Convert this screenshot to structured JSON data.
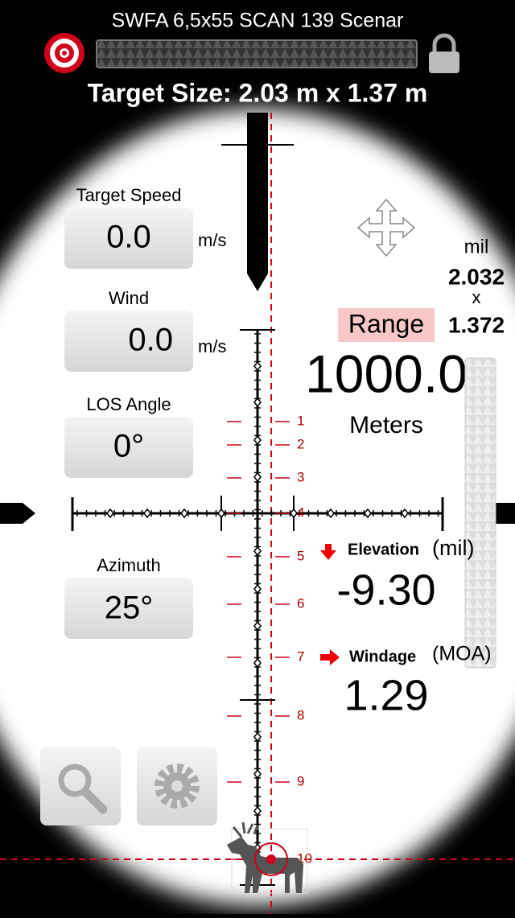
{
  "header": {
    "title": "SWFA 6,5x55 SCAN 139 Scenar",
    "target_size": "Target Size: 2.03 m x 1.37 m"
  },
  "inputs": [
    {
      "label": "Target Speed",
      "value": "0.0",
      "unit": "m/s"
    },
    {
      "label": "Wind",
      "value": "0.0",
      "unit": "m/s"
    },
    {
      "label": "LOS Angle",
      "value": "0°"
    },
    {
      "label": "Azimuth",
      "value": "25°"
    }
  ],
  "mil_size": {
    "unit": "mil",
    "width": "2.032",
    "separator": "x",
    "height": "1.372"
  },
  "range": {
    "label": "Range",
    "value": "1000.0",
    "unit": "Meters"
  },
  "elevation": {
    "label": "Elevation",
    "unit": "(mil)",
    "value": "-9.30"
  },
  "windage": {
    "label": "Windage",
    "unit": "(MOA)",
    "value": "1.29"
  },
  "reticle_labels": [
    "1",
    "2",
    "3",
    "4",
    "5",
    "6",
    "7",
    "8",
    "9",
    "10"
  ]
}
